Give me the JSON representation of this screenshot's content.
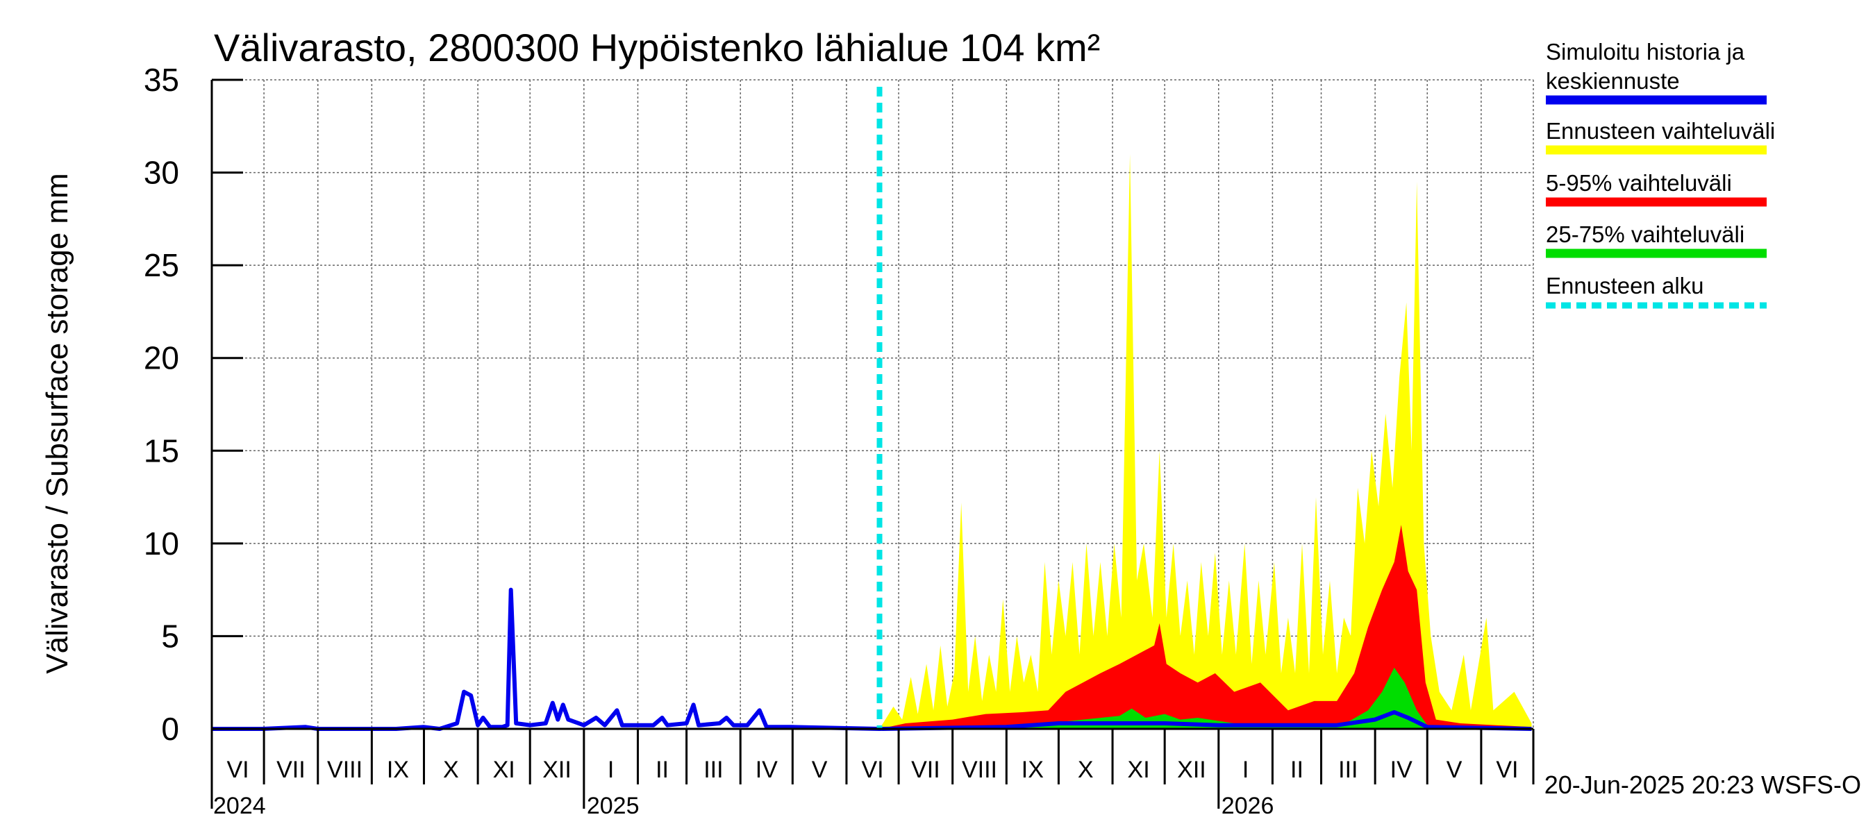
{
  "chart_data": {
    "type": "area",
    "title": "Välivarasto, 2800300 Hypöistenko lähialue 104 km²",
    "ylabel": "Välivarasto / Subsurface storage  mm",
    "xlabel": "",
    "ylim": [
      0,
      35
    ],
    "yticks": [
      0,
      5,
      10,
      15,
      20,
      25,
      30,
      35
    ],
    "xlim": [
      "2024-06-01",
      "2026-06-30"
    ],
    "grid": true,
    "legend_position": "right",
    "month_labels": [
      "VI",
      "VII",
      "VIII",
      "IX",
      "X",
      "XI",
      "XII",
      "I",
      "II",
      "III",
      "IV",
      "V",
      "VI",
      "VII",
      "VIII",
      "IX",
      "X",
      "XI",
      "XII",
      "I",
      "II",
      "III",
      "IV",
      "V",
      "VI"
    ],
    "year_labels": [
      "2024",
      "2025",
      "2026"
    ],
    "forecast_start": "2025-06-20",
    "footer": "20-Jun-2025 20:23 WSFS-O",
    "colors": {
      "history": "#0000ee",
      "full_range": "#ffff00",
      "p5_95": "#ff0000",
      "p25_75": "#00dd00",
      "forecast_start": "#00e5e5"
    },
    "series": [
      {
        "name": "Simuloitu historia ja keskiennuste",
        "points": [
          [
            "2024-06-01",
            0.0
          ],
          [
            "2024-06-30",
            0.0
          ],
          [
            "2024-07-25",
            0.1
          ],
          [
            "2024-08-01",
            0.0
          ],
          [
            "2024-09-15",
            0.0
          ],
          [
            "2024-10-01",
            0.1
          ],
          [
            "2024-10-10",
            0.0
          ],
          [
            "2024-10-20",
            0.3
          ],
          [
            "2024-10-24",
            2.0
          ],
          [
            "2024-10-28",
            1.8
          ],
          [
            "2024-11-01",
            0.2
          ],
          [
            "2024-11-04",
            0.6
          ],
          [
            "2024-11-08",
            0.1
          ],
          [
            "2024-11-15",
            0.1
          ],
          [
            "2024-11-18",
            0.2
          ],
          [
            "2024-11-20",
            7.5
          ],
          [
            "2024-11-23",
            0.3
          ],
          [
            "2024-12-01",
            0.2
          ],
          [
            "2024-12-10",
            0.3
          ],
          [
            "2024-12-14",
            1.4
          ],
          [
            "2024-12-17",
            0.5
          ],
          [
            "2024-12-20",
            1.3
          ],
          [
            "2024-12-23",
            0.5
          ],
          [
            "2025-01-01",
            0.2
          ],
          [
            "2025-01-08",
            0.6
          ],
          [
            "2025-01-13",
            0.2
          ],
          [
            "2025-01-20",
            1.0
          ],
          [
            "2025-01-23",
            0.2
          ],
          [
            "2025-02-10",
            0.2
          ],
          [
            "2025-02-15",
            0.6
          ],
          [
            "2025-02-18",
            0.2
          ],
          [
            "2025-03-01",
            0.3
          ],
          [
            "2025-03-05",
            1.3
          ],
          [
            "2025-03-08",
            0.2
          ],
          [
            "2025-03-20",
            0.3
          ],
          [
            "2025-03-24",
            0.6
          ],
          [
            "2025-03-28",
            0.2
          ],
          [
            "2025-04-05",
            0.2
          ],
          [
            "2025-04-12",
            1.0
          ],
          [
            "2025-04-16",
            0.1
          ],
          [
            "2025-05-01",
            0.1
          ],
          [
            "2025-06-20",
            0.0
          ],
          [
            "2025-09-01",
            0.1
          ],
          [
            "2025-10-01",
            0.3
          ],
          [
            "2025-11-01",
            0.3
          ],
          [
            "2025-12-01",
            0.3
          ],
          [
            "2026-01-01",
            0.2
          ],
          [
            "2026-03-10",
            0.2
          ],
          [
            "2026-04-01",
            0.5
          ],
          [
            "2026-04-12",
            0.9
          ],
          [
            "2026-04-20",
            0.6
          ],
          [
            "2026-05-01",
            0.1
          ],
          [
            "2026-06-30",
            0.0
          ]
        ]
      },
      {
        "name": "Ennusteen vaihteluväli",
        "points": [
          [
            "2025-06-20",
            0.0
          ],
          [
            "2025-06-28",
            1.2
          ],
          [
            "2025-07-03",
            0.5
          ],
          [
            "2025-07-08",
            2.8
          ],
          [
            "2025-07-12",
            0.8
          ],
          [
            "2025-07-17",
            3.5
          ],
          [
            "2025-07-21",
            1.0
          ],
          [
            "2025-07-25",
            4.5
          ],
          [
            "2025-07-29",
            1.2
          ],
          [
            "2025-08-02",
            3.0
          ],
          [
            "2025-08-06",
            12.2
          ],
          [
            "2025-08-10",
            2.0
          ],
          [
            "2025-08-14",
            5.0
          ],
          [
            "2025-08-18",
            1.5
          ],
          [
            "2025-08-22",
            4.0
          ],
          [
            "2025-08-26",
            2.0
          ],
          [
            "2025-08-30",
            7.0
          ],
          [
            "2025-09-03",
            2.0
          ],
          [
            "2025-09-07",
            5.0
          ],
          [
            "2025-09-11",
            2.5
          ],
          [
            "2025-09-15",
            4.0
          ],
          [
            "2025-09-19",
            2.0
          ],
          [
            "2025-09-23",
            9.0
          ],
          [
            "2025-09-27",
            4.0
          ],
          [
            "2025-10-01",
            8.0
          ],
          [
            "2025-10-05",
            5.0
          ],
          [
            "2025-10-09",
            9.0
          ],
          [
            "2025-10-13",
            4.0
          ],
          [
            "2025-10-17",
            10.0
          ],
          [
            "2025-10-21",
            5.0
          ],
          [
            "2025-10-25",
            9.0
          ],
          [
            "2025-10-29",
            5.0
          ],
          [
            "2025-11-02",
            10.0
          ],
          [
            "2025-11-06",
            6.0
          ],
          [
            "2025-11-11",
            31.0
          ],
          [
            "2025-11-15",
            8.0
          ],
          [
            "2025-11-19",
            10.0
          ],
          [
            "2025-11-24",
            6.0
          ],
          [
            "2025-11-28",
            15.0
          ],
          [
            "2025-12-02",
            6.0
          ],
          [
            "2025-12-06",
            10.0
          ],
          [
            "2025-12-10",
            5.0
          ],
          [
            "2025-12-14",
            8.0
          ],
          [
            "2025-12-18",
            4.0
          ],
          [
            "2025-12-22",
            9.0
          ],
          [
            "2025-12-26",
            5.0
          ],
          [
            "2025-12-30",
            9.5
          ],
          [
            "2026-01-03",
            4.0
          ],
          [
            "2026-01-07",
            8.0
          ],
          [
            "2026-01-11",
            4.0
          ],
          [
            "2026-01-16",
            10.0
          ],
          [
            "2026-01-20",
            3.5
          ],
          [
            "2026-01-24",
            8.0
          ],
          [
            "2026-01-28",
            4.0
          ],
          [
            "2026-02-02",
            9.0
          ],
          [
            "2026-02-06",
            3.0
          ],
          [
            "2026-02-10",
            6.0
          ],
          [
            "2026-02-14",
            3.0
          ],
          [
            "2026-02-18",
            10.0
          ],
          [
            "2026-02-22",
            3.0
          ],
          [
            "2026-02-26",
            12.5
          ],
          [
            "2026-03-02",
            4.0
          ],
          [
            "2026-03-06",
            8.0
          ],
          [
            "2026-03-10",
            3.0
          ],
          [
            "2026-03-14",
            6.0
          ],
          [
            "2026-03-18",
            5.0
          ],
          [
            "2026-03-22",
            13.0
          ],
          [
            "2026-03-26",
            10.0
          ],
          [
            "2026-03-30",
            15.0
          ],
          [
            "2026-04-03",
            12.0
          ],
          [
            "2026-04-07",
            17.0
          ],
          [
            "2026-04-11",
            13.0
          ],
          [
            "2026-04-15",
            19.0
          ],
          [
            "2026-04-19",
            23.0
          ],
          [
            "2026-04-22",
            15.0
          ],
          [
            "2026-04-25",
            29.5
          ],
          [
            "2026-04-29",
            10.0
          ],
          [
            "2026-05-03",
            5.0
          ],
          [
            "2026-05-08",
            2.0
          ],
          [
            "2026-05-15",
            1.0
          ],
          [
            "2026-05-22",
            4.0
          ],
          [
            "2026-05-26",
            1.0
          ],
          [
            "2026-06-04",
            6.0
          ],
          [
            "2026-06-08",
            1.0
          ],
          [
            "2026-06-20",
            2.0
          ],
          [
            "2026-06-30",
            0.3
          ]
        ]
      },
      {
        "name": "5-95% vaihteluväli",
        "points": [
          [
            "2025-06-20",
            0.0
          ],
          [
            "2025-07-05",
            0.3
          ],
          [
            "2025-08-01",
            0.5
          ],
          [
            "2025-08-20",
            0.8
          ],
          [
            "2025-09-10",
            0.9
          ],
          [
            "2025-09-25",
            1.0
          ],
          [
            "2025-10-05",
            2.0
          ],
          [
            "2025-10-15",
            2.5
          ],
          [
            "2025-10-25",
            3.0
          ],
          [
            "2025-11-05",
            3.5
          ],
          [
            "2025-11-15",
            4.0
          ],
          [
            "2025-11-25",
            4.5
          ],
          [
            "2025-11-28",
            5.7
          ],
          [
            "2025-12-02",
            3.5
          ],
          [
            "2025-12-10",
            3.0
          ],
          [
            "2025-12-20",
            2.5
          ],
          [
            "2025-12-30",
            3.0
          ],
          [
            "2026-01-10",
            2.0
          ],
          [
            "2026-01-25",
            2.5
          ],
          [
            "2026-02-10",
            1.0
          ],
          [
            "2026-02-25",
            1.5
          ],
          [
            "2026-03-10",
            1.5
          ],
          [
            "2026-03-20",
            3.0
          ],
          [
            "2026-03-28",
            5.5
          ],
          [
            "2026-04-05",
            7.5
          ],
          [
            "2026-04-12",
            9.0
          ],
          [
            "2026-04-16",
            11.0
          ],
          [
            "2026-04-20",
            8.5
          ],
          [
            "2026-04-25",
            7.5
          ],
          [
            "2026-04-30",
            2.5
          ],
          [
            "2026-05-06",
            0.5
          ],
          [
            "2026-05-20",
            0.3
          ],
          [
            "2026-06-30",
            0.1
          ]
        ]
      },
      {
        "name": "25-75% vaihteluväli",
        "points": [
          [
            "2025-06-20",
            0.0
          ],
          [
            "2025-08-01",
            0.05
          ],
          [
            "2025-09-15",
            0.2
          ],
          [
            "2025-10-15",
            0.5
          ],
          [
            "2025-11-05",
            0.7
          ],
          [
            "2025-11-12",
            1.1
          ],
          [
            "2025-11-20",
            0.6
          ],
          [
            "2025-12-01",
            0.8
          ],
          [
            "2025-12-10",
            0.5
          ],
          [
            "2025-12-20",
            0.6
          ],
          [
            "2026-01-10",
            0.3
          ],
          [
            "2026-02-15",
            0.2
          ],
          [
            "2026-03-15",
            0.3
          ],
          [
            "2026-03-28",
            1.0
          ],
          [
            "2026-04-05",
            2.0
          ],
          [
            "2026-04-12",
            3.3
          ],
          [
            "2026-04-18",
            2.5
          ],
          [
            "2026-04-25",
            1.0
          ],
          [
            "2026-05-01",
            0.2
          ],
          [
            "2026-06-30",
            0.05
          ]
        ]
      },
      {
        "name": "Ennusteen alku"
      }
    ]
  }
}
